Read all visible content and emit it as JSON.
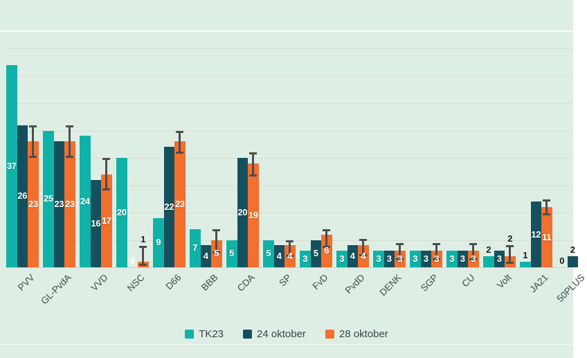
{
  "page": {
    "background": "#dfeee5"
  },
  "colors": {
    "gridline": "#d5ddd2",
    "axis_line": "#c7d3c9",
    "axis_text": "#3f4a48",
    "value_label_dark": "#1b1b1b",
    "value_label_light": "#ffffff",
    "error_bar": "#4d4d4d"
  },
  "legend": {
    "items": [
      {
        "label": "TK23",
        "color": "#10b2a7"
      },
      {
        "label": "24 oktober",
        "color": "#15505e"
      },
      {
        "label": "28 oktober",
        "color": "#f1702e"
      }
    ]
  },
  "chart_data": {
    "type": "bar",
    "title": "",
    "xlabel": "",
    "ylabel": "",
    "categories": [
      "PVV",
      "GL-PvdA",
      "VVD",
      "NSC",
      "D66",
      "BBB",
      "CDA",
      "SP",
      "FvD",
      "PvdD",
      "DENK",
      "SGP",
      "CU",
      "Volt",
      "JA21",
      "50PLUS"
    ],
    "series": [
      {
        "name": "TK23",
        "color": "#10b2a7",
        "values": [
          37,
          25,
          24,
          20,
          9,
          7,
          5,
          5,
          3,
          3,
          3,
          3,
          3,
          2,
          1,
          0
        ]
      },
      {
        "name": "24 oktober",
        "color": "#15505e",
        "values": [
          26,
          23,
          16,
          0,
          22,
          4,
          20,
          4,
          5,
          4,
          3,
          3,
          3,
          3,
          12,
          2
        ]
      },
      {
        "name": "28 oktober",
        "color": "#f1702e",
        "values": [
          23,
          23,
          17,
          1,
          23,
          5,
          19,
          4,
          6,
          4,
          3,
          3,
          3,
          2,
          11,
          null
        ]
      }
    ],
    "error_bars": {
      "series": "28 oktober",
      "ranges": [
        [
          20,
          26
        ],
        [
          20,
          26
        ],
        [
          14,
          20
        ],
        [
          0.3,
          3.9
        ],
        [
          20.7,
          25
        ],
        [
          2.5,
          6.9
        ],
        [
          16.6,
          21
        ],
        [
          1.9,
          5
        ],
        [
          3.5,
          7
        ],
        [
          2,
          5.2
        ],
        [
          1.3,
          4.4
        ],
        [
          1.3,
          4.4
        ],
        [
          1.3,
          4.4
        ],
        [
          0.6,
          4.1
        ],
        [
          9.5,
          12.4
        ],
        null
      ]
    },
    "label_overrides": {
      "1-3": {
        "color": "#ffffff"
      }
    },
    "ylim": [
      0,
      40
    ],
    "grid_step": 5,
    "grid": true,
    "legend_position": "bottom"
  }
}
